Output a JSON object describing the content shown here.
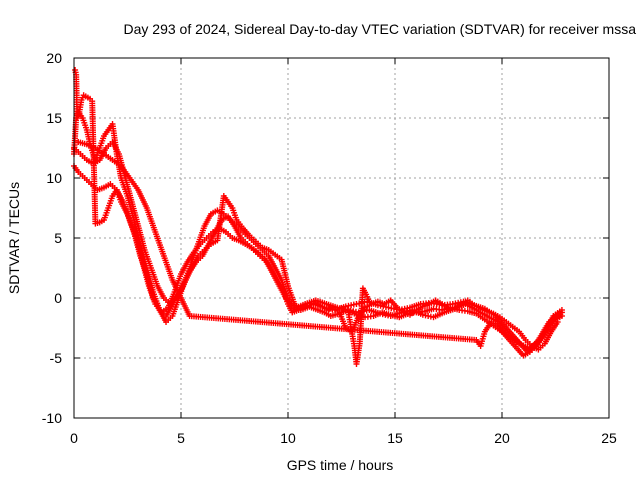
{
  "chart_data": {
    "type": "scatter",
    "title": "Day 293 of 2024, Sidereal Day-to-day VTEC variation (SDTVAR) for receiver mssa",
    "xlabel": "GPS time / hours",
    "ylabel": "SDTVAR / TECUs",
    "xlim": [
      0,
      25
    ],
    "ylim": [
      -10,
      20
    ],
    "xticks": [
      "0",
      "5",
      "10",
      "15",
      "20",
      "25"
    ],
    "yticks": [
      "20",
      "15",
      "10",
      "5",
      "0",
      "-5",
      "-10"
    ],
    "grid": true,
    "marker": "plus",
    "color": "#ff0000",
    "series": [
      {
        "name": "track-1",
        "x": [
          0.0,
          0.2,
          0.5,
          0.8,
          1.1,
          1.4,
          1.7,
          2.0,
          2.3,
          2.6,
          2.9,
          3.2,
          3.5,
          3.8,
          4.1,
          4.4,
          4.7,
          5.0,
          5.3,
          5.6,
          5.9,
          6.2,
          6.5,
          6.8,
          7.1,
          7.4,
          7.7,
          8.0,
          8.3,
          8.6,
          8.9,
          9.2,
          9.5,
          9.8,
          10.0,
          10.2,
          10.5,
          10.8,
          11.1,
          11.4,
          11.7,
          12.0,
          12.4,
          12.8,
          13.2,
          13.6,
          14.0,
          14.4,
          14.8,
          15.2,
          15.6,
          16.0,
          16.4,
          16.8,
          17.2,
          17.6,
          18.0,
          18.4,
          18.8,
          19.2,
          19.6,
          20.0,
          20.4,
          20.8,
          21.2,
          21.6,
          22.0,
          22.4,
          22.8
        ],
        "y": [
          11.0,
          10.5,
          10.0,
          9.5,
          9.0,
          9.2,
          9.5,
          9.0,
          8.0,
          6.5,
          5.0,
          3.0,
          1.0,
          -0.5,
          -1.2,
          -0.8,
          0.5,
          2.0,
          3.0,
          3.8,
          4.5,
          5.0,
          5.5,
          5.8,
          5.5,
          5.0,
          4.8,
          4.5,
          4.2,
          3.8,
          3.3,
          2.5,
          1.5,
          0.5,
          -0.5,
          -1.2,
          -1.0,
          -0.6,
          -0.8,
          -1.0,
          -1.2,
          -1.5,
          -1.3,
          -1.0,
          -1.4,
          -1.6,
          -1.5,
          -1.2,
          -1.4,
          -1.6,
          -1.3,
          -1.2,
          -1.1,
          -0.9,
          -1.0,
          -0.8,
          -1.0,
          -1.1,
          -1.3,
          -1.8,
          -2.3,
          -2.8,
          -3.3,
          -3.8,
          -4.3,
          -4.0,
          -3.0,
          -1.5,
          -1.0
        ]
      },
      {
        "name": "track-2",
        "x": [
          0.0,
          0.3,
          0.6,
          0.9,
          1.2,
          1.5,
          1.8,
          2.1,
          2.4,
          2.7,
          3.0,
          3.3,
          3.6,
          3.9,
          4.2,
          4.5,
          4.8,
          5.1,
          5.4,
          5.7,
          6.0,
          6.3,
          6.6,
          6.9,
          7.2,
          7.5,
          7.8,
          8.1,
          8.4,
          8.7,
          9.0,
          9.3,
          9.6,
          9.9,
          10.3,
          10.7,
          11.2,
          11.7,
          12.2,
          12.7,
          13.2,
          13.7,
          14.2,
          14.7,
          15.2,
          15.7,
          16.2,
          16.7,
          17.2,
          17.7,
          18.2,
          18.7,
          19.2,
          19.7,
          20.2,
          20.7,
          21.2,
          21.7,
          22.2,
          22.7
        ],
        "y": [
          12.5,
          12.0,
          11.5,
          11.2,
          11.5,
          12.5,
          13.0,
          12.0,
          10.0,
          8.0,
          6.0,
          4.0,
          2.5,
          1.0,
          0.0,
          -0.5,
          0.0,
          1.0,
          2.2,
          3.0,
          3.5,
          4.5,
          5.5,
          6.5,
          6.8,
          6.0,
          5.0,
          4.5,
          4.0,
          3.5,
          3.0,
          2.0,
          1.0,
          0.0,
          -1.0,
          -0.8,
          -0.5,
          -0.8,
          -1.0,
          -0.7,
          -0.5,
          -0.3,
          -0.6,
          -0.8,
          -1.0,
          -0.8,
          -0.5,
          -0.4,
          -0.6,
          -0.5,
          -0.3,
          -0.6,
          -0.9,
          -1.5,
          -2.5,
          -3.5,
          -4.5,
          -3.5,
          -2.0,
          -1.2
        ]
      },
      {
        "name": "track-3",
        "x": [
          0.0,
          0.1,
          0.2,
          0.4,
          0.6,
          0.8,
          1.0,
          1.2,
          1.4,
          1.6,
          1.8,
          2.0,
          2.2,
          2.5,
          2.8,
          3.1,
          3.4,
          3.7,
          4.0,
          4.3,
          4.6,
          4.9,
          5.2,
          5.5,
          5.8,
          6.1,
          6.4,
          6.7,
          7.0,
          7.3,
          7.6,
          7.9,
          8.2,
          8.5,
          8.8,
          9.1,
          9.4,
          9.7,
          10.0,
          10.4,
          10.8,
          11.3,
          11.8,
          12.3,
          12.8,
          13.3,
          13.8,
          14.3,
          14.8,
          15.3,
          15.8,
          16.3,
          16.8,
          17.3,
          17.8,
          18.3,
          18.8,
          19.3,
          19.8,
          20.3,
          20.8,
          21.3,
          21.8,
          22.3,
          22.8
        ],
        "y": [
          12.0,
          15.0,
          15.5,
          15.0,
          14.0,
          12.5,
          11.5,
          12.5,
          13.5,
          14.0,
          14.5,
          12.0,
          10.0,
          8.5,
          6.5,
          4.5,
          2.5,
          0.5,
          -1.0,
          -2.0,
          -1.5,
          0.0,
          1.5,
          3.0,
          4.5,
          6.0,
          7.0,
          7.3,
          7.0,
          6.5,
          6.0,
          5.5,
          5.0,
          4.5,
          4.0,
          3.5,
          2.5,
          1.5,
          0.0,
          -0.8,
          -0.5,
          -0.2,
          -0.5,
          -0.8,
          -1.0,
          -1.2,
          -1.0,
          -1.3,
          -1.5,
          -1.2,
          -1.0,
          -1.4,
          -1.6,
          -1.2,
          -0.9,
          -0.5,
          -1.0,
          -1.5,
          -2.0,
          -3.0,
          -3.8,
          -4.2,
          -3.5,
          -2.0,
          -1.5
        ]
      },
      {
        "name": "track-4",
        "x": [
          0.05,
          0.1,
          0.15,
          0.25,
          0.35,
          0.45,
          0.55,
          0.65,
          0.75,
          0.85,
          1.0,
          1.2,
          1.4,
          1.6,
          1.8,
          2.0,
          2.2,
          2.5,
          2.8,
          3.1,
          3.4,
          3.7,
          4.0,
          4.3,
          4.6,
          4.9,
          5.2,
          5.5,
          5.8,
          6.1,
          6.4,
          6.7,
          7.0,
          7.2,
          7.4,
          7.6,
          7.9,
          8.2,
          8.5,
          8.8,
          9.1,
          9.4,
          9.7,
          10.0,
          10.3,
          10.6,
          10.9,
          11.2,
          11.5,
          11.8,
          12.1,
          12.4,
          12.7,
          13.0,
          13.3,
          13.6,
          13.9,
          14.2,
          14.5,
          14.8,
          15.1,
          15.4,
          15.7,
          16.0,
          16.3,
          16.6,
          16.9,
          17.2,
          17.5,
          17.8,
          18.1,
          18.4,
          18.7,
          19.0,
          19.3,
          19.6,
          19.9,
          20.2,
          20.5,
          20.8,
          21.1,
          21.4,
          21.7,
          22.0,
          22.3,
          22.6
        ],
        "y": [
          19.0,
          18.6,
          15.0,
          15.5,
          16.5,
          16.9,
          16.8,
          16.7,
          16.6,
          16.4,
          6.2,
          6.3,
          6.5,
          7.5,
          8.5,
          9.0,
          8.0,
          7.0,
          5.5,
          3.5,
          2.0,
          0.0,
          -1.0,
          -1.5,
          -0.5,
          0.5,
          1.5,
          2.5,
          3.5,
          4.0,
          4.5,
          4.8,
          8.5,
          8.0,
          7.5,
          6.5,
          5.8,
          5.2,
          4.7,
          4.2,
          4.0,
          3.6,
          3.2,
          1.0,
          -0.5,
          -1.0,
          -0.8,
          -0.3,
          -0.6,
          -1.0,
          -0.8,
          -1.2,
          -2.5,
          -2.8,
          -1.5,
          -0.8,
          -0.5,
          -0.3,
          -0.5,
          -0.2,
          -0.8,
          -1.2,
          -1.4,
          -1.0,
          -0.7,
          -0.5,
          -0.2,
          -0.5,
          -1.0,
          -0.8,
          -0.5,
          -0.2,
          -0.6,
          -0.9,
          -1.1,
          -1.3,
          -1.6,
          -2.0,
          -2.4,
          -2.8,
          -3.5,
          -4.0,
          -4.3,
          -3.8,
          -2.8,
          -2.0
        ]
      },
      {
        "name": "track-5",
        "x": [
          0.2,
          0.6,
          1.0,
          1.4,
          1.8,
          2.2,
          2.6,
          3.0,
          3.4,
          3.8,
          4.2,
          4.6,
          5.0,
          5.4,
          18.8,
          19.0,
          19.2,
          19.5,
          19.8,
          20.1,
          20.4,
          20.7,
          21.0,
          21.3,
          21.6,
          21.9,
          22.2,
          22.5,
          22.8
        ],
        "y": [
          13.0,
          12.8,
          12.5,
          12.0,
          11.5,
          11.0,
          10.0,
          9.0,
          7.5,
          5.5,
          3.5,
          1.5,
          0.0,
          -1.5,
          -3.5,
          -4.0,
          -2.8,
          -2.0,
          -2.4,
          -3.0,
          -3.6,
          -4.2,
          -4.8,
          -4.5,
          -4.0,
          -3.2,
          -2.5,
          -1.8,
          -1.2
        ]
      },
      {
        "name": "track-6",
        "x": [
          12.8,
          12.9,
          13.0,
          13.1,
          13.2,
          13.35,
          13.5,
          13.65,
          13.8
        ],
        "y": [
          -1.0,
          -2.0,
          -3.0,
          -4.0,
          -5.5,
          -3.8,
          0.8,
          0.3,
          -0.3
        ]
      }
    ]
  }
}
